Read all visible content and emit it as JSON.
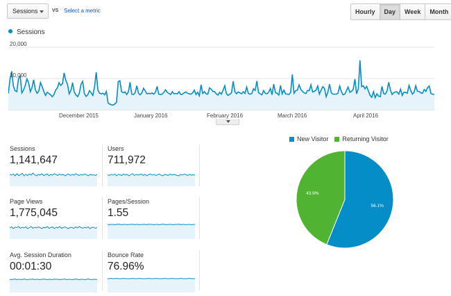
{
  "toolbar": {
    "metric_select": "Sessions",
    "vs_label": "VS",
    "select_metric_link": "Select a metric",
    "range_buttons": [
      "Hourly",
      "Day",
      "Week",
      "Month"
    ],
    "active_range": "Day"
  },
  "colors": {
    "series": "#058dc7",
    "fill": "#e6f3fa",
    "new_visitor": "#058dc7",
    "returning_visitor": "#50b432"
  },
  "chart_data": [
    {
      "type": "area",
      "series": [
        {
          "name": "Sessions",
          "values": [
            5200,
            9800,
            12300,
            7600,
            6100,
            5800,
            9900,
            10800,
            5400,
            6300,
            7800,
            9900,
            8700,
            5800,
            7100,
            9600,
            6400,
            5300,
            6000,
            8700,
            7400,
            5800,
            4600,
            5600,
            5200,
            4800,
            4200,
            4900,
            6300,
            7000,
            8700,
            7800,
            8300,
            11800,
            9500,
            8100,
            5100,
            6200,
            8700,
            5700,
            4700,
            4200,
            5300,
            8200,
            9100,
            5200,
            4300,
            4800,
            6100,
            5400,
            4600,
            7500,
            12000,
            6300,
            5300,
            5100,
            5300,
            4800,
            5900,
            2200,
            1800,
            1600,
            1500,
            1900,
            2400,
            9000,
            9300,
            5800,
            5500,
            5700,
            4900,
            5700,
            8800,
            5000,
            4900,
            5400,
            7700,
            5300,
            4800,
            5400,
            6900,
            6000,
            5100,
            5300,
            5100,
            5400,
            5000,
            5600,
            7500,
            5000,
            4900,
            5000,
            5600,
            6400,
            5600,
            5200,
            4900,
            5800,
            5100,
            5200,
            5100,
            5800,
            4900,
            5000,
            5400,
            5700,
            5300,
            5100,
            5000,
            5400,
            6300,
            4900,
            5600,
            4500,
            8000,
            5200,
            5800,
            5100,
            5000,
            7000,
            6600,
            5900,
            5800,
            5100,
            4700,
            5600,
            5000,
            6200,
            7700,
            5200,
            4600,
            5000,
            5400,
            9100,
            5800,
            5100,
            5700,
            5400,
            5100,
            5800,
            5200,
            7300,
            5200,
            5000,
            5200,
            6700,
            6200,
            9200,
            5500,
            5100,
            4800,
            6100,
            5300,
            5100,
            5600,
            6800,
            4800,
            8200,
            5500,
            5300,
            4700,
            7800,
            5100,
            6300,
            5100,
            5000,
            4900,
            5600,
            11300,
            5300,
            6100,
            6300,
            8000,
            6500,
            5900,
            5400,
            5200,
            6200,
            6100,
            8000,
            5700,
            5900,
            6300,
            7600,
            5000,
            6300,
            7400,
            6900,
            4200,
            5600,
            8200,
            5500,
            5000,
            5000,
            5000,
            5300,
            7600,
            5800,
            4800,
            5000,
            6100,
            7300,
            5600,
            5900,
            6500,
            9800,
            5100,
            6700,
            15800,
            7400,
            7700,
            6700,
            7500,
            6000,
            4600,
            4000,
            5800,
            3900,
            5100,
            4400,
            4200,
            7500,
            5200,
            5000,
            6000,
            8800,
            6300,
            4900,
            5500,
            5700,
            5700,
            5000,
            6600,
            4600,
            5600,
            5600,
            5300,
            7800,
            6200,
            5000,
            5600,
            7700,
            5900,
            5900,
            5400,
            5300,
            6500,
            5900,
            7100,
            7600,
            5200,
            5000,
            4900
          ]
        }
      ],
      "x_ticks": [
        "December 2015",
        "January 2016",
        "February 2016",
        "March 2016",
        "April 2016"
      ],
      "y_ticks": [
        "20,000",
        "10,000"
      ],
      "ylim": [
        0,
        20000
      ]
    },
    {
      "type": "pie",
      "categories": [
        "New Visitor",
        "Returning Visitor"
      ],
      "values": [
        56.1,
        43.9
      ],
      "data_labels": [
        "56.1%",
        "43.9%"
      ]
    }
  ],
  "legend": {
    "main": "Sessions"
  },
  "metrics": [
    {
      "label": "Sessions",
      "value": "1,141,647",
      "spark": [
        34,
        32,
        35,
        30,
        36,
        31,
        33,
        37,
        30,
        34,
        31,
        35,
        32,
        38,
        33,
        30,
        34,
        32,
        36,
        31,
        33,
        35,
        30,
        34,
        32,
        36,
        33,
        31,
        35,
        32,
        34,
        30,
        33,
        35,
        31,
        34,
        32,
        36,
        33,
        31,
        34,
        32,
        35,
        33,
        30,
        34,
        32,
        33,
        31,
        34
      ]
    },
    {
      "label": "Users",
      "value": "711,972",
      "spark": [
        33,
        31,
        34,
        32,
        35,
        30,
        34,
        33,
        31,
        35,
        32,
        34,
        30,
        33,
        36,
        31,
        34,
        32,
        33,
        35,
        31,
        34,
        30,
        33,
        35,
        32,
        34,
        31,
        33,
        35,
        32,
        30,
        34,
        33,
        31,
        35,
        32,
        34,
        33,
        31,
        30,
        34,
        32,
        35,
        33,
        31,
        34,
        32,
        33,
        32
      ]
    },
    {
      "label": "Page Views",
      "value": "1,775,045",
      "spark": [
        32,
        35,
        30,
        34,
        33,
        36,
        31,
        34,
        32,
        35,
        30,
        33,
        36,
        31,
        34,
        32,
        35,
        33,
        30,
        34,
        32,
        36,
        31,
        33,
        35,
        30,
        34,
        32,
        36,
        31,
        33,
        35,
        32,
        30,
        34,
        33,
        31,
        35,
        32,
        36,
        33,
        31,
        34,
        32,
        35,
        30,
        33,
        34,
        31,
        33
      ]
    },
    {
      "label": "Pages/Session",
      "value": "1.55",
      "spark": [
        42,
        41,
        42,
        42,
        41,
        42,
        43,
        42,
        41,
        42,
        42,
        41,
        42,
        42,
        43,
        41,
        42,
        42,
        41,
        42,
        42,
        42,
        41,
        43,
        42,
        42,
        41,
        42,
        42,
        41,
        42,
        43,
        42,
        41,
        42,
        42,
        42,
        41,
        42,
        42,
        43,
        41,
        42,
        42,
        41,
        42,
        42,
        41,
        42,
        42
      ]
    },
    {
      "label": "Avg. Session Duration",
      "value": "00:01:30",
      "spark": [
        38,
        37,
        38,
        39,
        37,
        38,
        38,
        37,
        39,
        38,
        37,
        38,
        38,
        39,
        37,
        38,
        38,
        37,
        38,
        39,
        38,
        37,
        38,
        38,
        37,
        39,
        38,
        38,
        37,
        38,
        38,
        39,
        37,
        38,
        38,
        37,
        38,
        39,
        38,
        37,
        38,
        38,
        37,
        38,
        39,
        38,
        37,
        38,
        38,
        37
      ]
    },
    {
      "label": "Bounce Rate",
      "value": "76.96%",
      "spark": [
        40,
        40,
        41,
        40,
        40,
        41,
        40,
        40,
        40,
        41,
        40,
        40,
        40,
        40,
        41,
        40,
        40,
        40,
        41,
        40,
        40,
        40,
        40,
        41,
        40,
        40,
        40,
        41,
        40,
        40,
        40,
        40,
        41,
        40,
        40,
        40,
        41,
        40,
        40,
        40,
        40,
        41,
        40,
        40,
        40,
        40,
        41,
        40,
        40,
        40
      ]
    }
  ],
  "pie_legend": [
    "New Visitor",
    "Returning Visitor"
  ]
}
